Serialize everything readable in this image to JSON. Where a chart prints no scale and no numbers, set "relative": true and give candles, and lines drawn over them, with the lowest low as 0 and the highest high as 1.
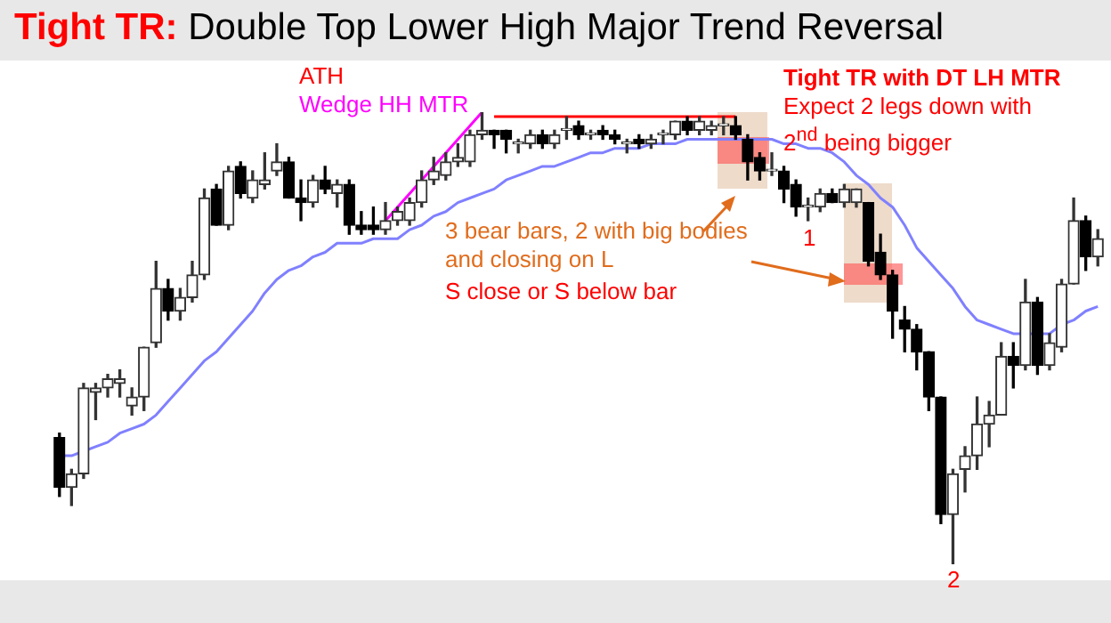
{
  "chart_data": {
    "type": "candlestick",
    "relative": true,
    "title": "Tight TR: Double Top Lower High Major Trend Reversal",
    "annotations": [
      "ATH",
      "Wedge HH MTR",
      "Tight TR with DT LH MTR",
      "Expect 2 legs down with 2$^{nd}$ being bigger",
      "3 bear bars, 2 with big bodies and closing on L",
      "S close or S below bar",
      "1",
      "2"
    ],
    "categories": [
      null,
      null,
      null,
      null,
      null,
      null,
      null,
      null,
      null,
      null,
      null,
      null,
      null,
      null,
      null,
      null,
      null,
      null,
      null,
      null,
      null,
      null,
      null,
      null,
      null,
      null,
      null,
      null,
      null,
      null,
      null,
      null,
      null,
      null,
      null,
      null,
      null,
      null,
      null,
      null,
      null,
      null,
      null,
      null,
      null,
      null,
      null,
      null,
      null,
      null,
      null,
      null,
      null,
      null,
      null,
      null,
      null,
      null,
      null,
      null,
      null,
      null,
      null,
      null,
      null,
      null,
      null,
      null,
      null,
      null,
      null,
      null,
      null,
      null,
      null,
      null,
      null,
      null,
      null,
      null,
      null,
      null,
      null,
      null,
      null,
      null,
      null
    ],
    "ohlc": [
      [
        0.28,
        0.29,
        0.15,
        0.17
      ],
      [
        0.17,
        0.21,
        0.13,
        0.2
      ],
      [
        0.2,
        0.4,
        0.19,
        0.39
      ],
      [
        0.38,
        0.4,
        0.32,
        0.39
      ],
      [
        0.39,
        0.42,
        0.37,
        0.41
      ],
      [
        0.4,
        0.43,
        0.37,
        0.41
      ],
      [
        0.35,
        0.39,
        0.33,
        0.37
      ],
      [
        0.37,
        0.48,
        0.34,
        0.48
      ],
      [
        0.49,
        0.67,
        0.48,
        0.61
      ],
      [
        0.61,
        0.63,
        0.54,
        0.56
      ],
      [
        0.56,
        0.61,
        0.54,
        0.59
      ],
      [
        0.59,
        0.67,
        0.58,
        0.64
      ],
      [
        0.64,
        0.83,
        0.63,
        0.81
      ],
      [
        0.83,
        0.84,
        0.75,
        0.75
      ],
      [
        0.75,
        0.88,
        0.74,
        0.87
      ],
      [
        0.88,
        0.89,
        0.81,
        0.82
      ],
      [
        0.81,
        0.87,
        0.8,
        0.85
      ],
      [
        0.84,
        0.91,
        0.83,
        0.85
      ],
      [
        0.87,
        0.93,
        0.86,
        0.89
      ],
      [
        0.89,
        0.9,
        0.81,
        0.81
      ],
      [
        0.81,
        0.85,
        0.76,
        0.8
      ],
      [
        0.8,
        0.86,
        0.79,
        0.85
      ],
      [
        0.85,
        0.88,
        0.82,
        0.83
      ],
      [
        0.82,
        0.85,
        0.79,
        0.84
      ],
      [
        0.84,
        0.85,
        0.73,
        0.75
      ],
      [
        0.75,
        0.78,
        0.73,
        0.74
      ],
      [
        0.75,
        0.79,
        0.73,
        0.74
      ],
      [
        0.74,
        0.8,
        0.73,
        0.76
      ],
      [
        0.76,
        0.79,
        0.75,
        0.78
      ],
      [
        0.76,
        0.81,
        0.75,
        0.8
      ],
      [
        0.8,
        0.87,
        0.79,
        0.85
      ],
      [
        0.85,
        0.9,
        0.84,
        0.87
      ],
      [
        0.86,
        0.91,
        0.85,
        0.89
      ],
      [
        0.89,
        0.93,
        0.88,
        0.9
      ],
      [
        0.89,
        0.96,
        0.88,
        0.95
      ],
      [
        0.95,
        1,
        0.94,
        0.96
      ],
      [
        0.96,
        0.96,
        0.92,
        0.95
      ],
      [
        0.96,
        0.96,
        0.91,
        0.94
      ],
      [
        0.93,
        0.94,
        0.91,
        0.93
      ],
      [
        0.93,
        0.96,
        0.92,
        0.95
      ],
      [
        0.95,
        0.96,
        0.92,
        0.93
      ],
      [
        0.93,
        0.96,
        0.92,
        0.95
      ],
      [
        0.96,
        0.99,
        0.94,
        0.96
      ],
      [
        0.97,
        0.98,
        0.94,
        0.95
      ],
      [
        0.95,
        0.96,
        0.94,
        0.95
      ],
      [
        0.96,
        0.97,
        0.94,
        0.95
      ],
      [
        0.95,
        0.96,
        0.93,
        0.94
      ],
      [
        0.93,
        0.94,
        0.91,
        0.93
      ],
      [
        0.94,
        0.95,
        0.92,
        0.93
      ],
      [
        0.93,
        0.95,
        0.92,
        0.94
      ],
      [
        0.95,
        0.96,
        0.93,
        0.95
      ],
      [
        0.95,
        0.98,
        0.94,
        0.98
      ],
      [
        0.98,
        0.99,
        0.95,
        0.96
      ],
      [
        0.96,
        0.99,
        0.95,
        0.98
      ],
      [
        0.96,
        0.98,
        0.95,
        0.97
      ],
      [
        0.97,
        0.99,
        0.95,
        0.97
      ],
      [
        0.97,
        0.99,
        0.94,
        0.95
      ],
      [
        0.94,
        0.95,
        0.85,
        0.89
      ],
      [
        0.9,
        0.91,
        0.85,
        0.87
      ],
      [
        0.87,
        0.91,
        0.86,
        0.87
      ],
      [
        0.87,
        0.88,
        0.8,
        0.83
      ],
      [
        0.84,
        0.85,
        0.77,
        0.79
      ],
      [
        0.79,
        0.81,
        0.76,
        0.79
      ],
      [
        0.79,
        0.83,
        0.78,
        0.82
      ],
      [
        0.82,
        0.83,
        0.8,
        0.8
      ],
      [
        0.8,
        0.84,
        0.79,
        0.83
      ],
      [
        0.8,
        0.83,
        0.79,
        0.83
      ],
      [
        0.8,
        0.8,
        0.66,
        0.67
      ],
      [
        0.69,
        0.73,
        0.63,
        0.64
      ],
      [
        0.64,
        0.65,
        0.5,
        0.56
      ],
      [
        0.54,
        0.57,
        0.47,
        0.52
      ],
      [
        0.52,
        0.53,
        0.43,
        0.47
      ],
      [
        0.47,
        0.47,
        0.34,
        0.37
      ],
      [
        0.37,
        0.37,
        0.09,
        0.11
      ],
      [
        0.11,
        0.21,
        0,
        0.2
      ],
      [
        0.21,
        0.26,
        0.16,
        0.24
      ],
      [
        0.24,
        0.37,
        0.21,
        0.31
      ],
      [
        0.31,
        0.36,
        0.26,
        0.33
      ],
      [
        0.33,
        0.49,
        0.33,
        0.46
      ],
      [
        0.46,
        0.49,
        0.39,
        0.44
      ],
      [
        0.44,
        0.63,
        0.43,
        0.58
      ],
      [
        0.58,
        0.59,
        0.42,
        0.44
      ],
      [
        0.44,
        0.51,
        0.43,
        0.49
      ],
      [
        0.48,
        0.63,
        0.47,
        0.62
      ],
      [
        0.62,
        0.81,
        0.62,
        0.76
      ],
      [
        0.76,
        0.77,
        0.65,
        0.68
      ],
      [
        0.68,
        0.74,
        0.66,
        0.72
      ]
    ],
    "series": [
      {
        "type": "line",
        "color": "#8080ff",
        "values": [
          0.24,
          0.24,
          0.25,
          0.26,
          0.27,
          0.29,
          0.3,
          0.31,
          0.33,
          0.36,
          0.39,
          0.42,
          0.45,
          0.47,
          0.5,
          0.53,
          0.56,
          0.6,
          0.63,
          0.65,
          0.66,
          0.68,
          0.69,
          0.71,
          0.71,
          0.71,
          0.72,
          0.72,
          0.72,
          0.74,
          0.75,
          0.77,
          0.78,
          0.8,
          0.81,
          0.82,
          0.83,
          0.85,
          0.86,
          0.87,
          0.88,
          0.88,
          0.89,
          0.9,
          0.91,
          0.91,
          0.92,
          0.92,
          0.92,
          0.93,
          0.93,
          0.93,
          0.94,
          0.94,
          0.94,
          0.94,
          0.94,
          0.94,
          0.94,
          0.94,
          0.93,
          0.93,
          0.92,
          0.92,
          0.91,
          0.89,
          0.86,
          0.84,
          0.81,
          0.79,
          0.75,
          0.7,
          0.67,
          0.64,
          0.61,
          0.57,
          0.54,
          0.53,
          0.52,
          0.51,
          0.51,
          0.51,
          0.51,
          0.53,
          0.54,
          0.56,
          0.57
        ]
      },
      {
        "type": "line",
        "color": "#ff00ff",
        "values": [
          null,
          null,
          null,
          null,
          null,
          null,
          null,
          null,
          null,
          null,
          null,
          null,
          null,
          null,
          null,
          null,
          null,
          null,
          null,
          null,
          null,
          null,
          null,
          null,
          null,
          null,
          null,
          0.76,
          null,
          null,
          null,
          null,
          null,
          null,
          null,
          1,
          null,
          null,
          null,
          null,
          null,
          null,
          null,
          null,
          null,
          null,
          null,
          null,
          null,
          null,
          null,
          null,
          null,
          null,
          null,
          null,
          null,
          null,
          null,
          null,
          null,
          null,
          null,
          null,
          null,
          null,
          null,
          null,
          null,
          null,
          null,
          null,
          null,
          null,
          null,
          null,
          null,
          null,
          null,
          null,
          null,
          null,
          null,
          null,
          null,
          null,
          null
        ]
      },
      {
        "type": "line",
        "color": "#ff0000",
        "values": [
          null,
          null,
          null,
          null,
          null,
          null,
          null,
          null,
          null,
          null,
          null,
          null,
          null,
          null,
          null,
          null,
          null,
          null,
          null,
          null,
          null,
          null,
          null,
          null,
          null,
          null,
          null,
          null,
          null,
          null,
          null,
          null,
          null,
          null,
          null,
          null,
          0.99,
          null,
          null,
          null,
          null,
          null,
          null,
          null,
          null,
          null,
          null,
          null,
          null,
          null,
          null,
          null,
          null,
          null,
          null,
          null,
          0.99,
          null,
          null,
          null,
          null,
          null,
          null,
          null,
          null,
          null,
          null,
          null,
          null,
          null,
          null,
          null,
          null,
          null,
          null,
          null,
          null,
          null,
          null,
          null,
          null,
          null,
          null,
          null,
          null,
          null,
          null
        ]
      }
    ]
  }
}
